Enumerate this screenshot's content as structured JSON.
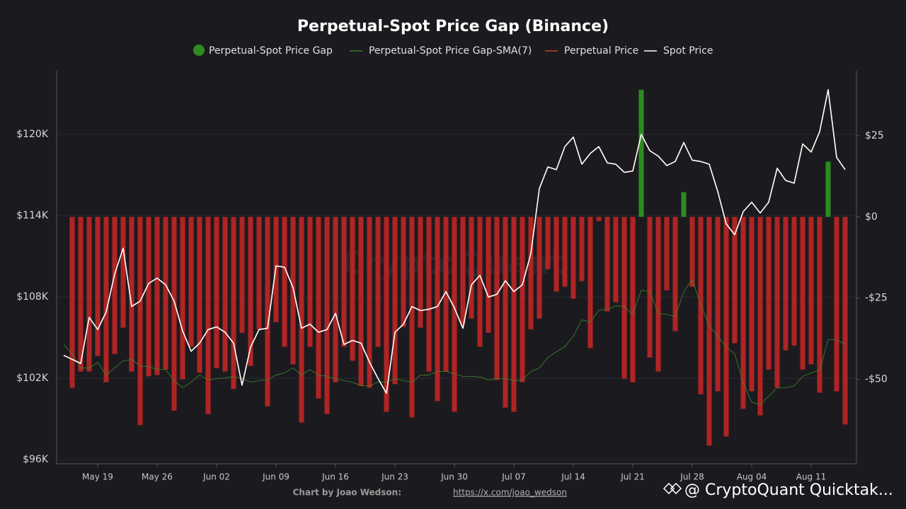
{
  "chart_data": {
    "type": "bar",
    "title": "Perpetual-Spot Price Gap (Binance)",
    "credit": "Chart by Joao Wedson:",
    "credit_link": "https://x.com/joao_wedson",
    "watermark": "@ CryptoQuant Quicktak...",
    "background_watermark": "CryptoQuant",
    "categories": [
      null,
      null,
      null,
      null,
      "May 19",
      null,
      null,
      null,
      null,
      null,
      null,
      "May 26",
      null,
      null,
      null,
      null,
      null,
      null,
      "Jun 02",
      null,
      null,
      null,
      null,
      null,
      null,
      "Jun 09",
      null,
      null,
      null,
      null,
      null,
      null,
      "Jun 16",
      null,
      null,
      null,
      null,
      null,
      null,
      "Jun 23",
      null,
      null,
      null,
      null,
      null,
      null,
      "Jun 30",
      null,
      null,
      null,
      null,
      null,
      null,
      "Jul 07",
      null,
      null,
      null,
      null,
      null,
      null,
      "Jul 14",
      null,
      null,
      null,
      null,
      null,
      null,
      "Jul 21",
      null,
      null,
      null,
      null,
      null,
      null,
      "Jul 28",
      null,
      null,
      null,
      null,
      null,
      null,
      "Aug 04",
      null,
      null,
      null,
      null,
      null,
      null,
      "Aug 11",
      null,
      null,
      null,
      null
    ],
    "ylim": [
      95700,
      124700
    ],
    "yticks": [
      {
        "value": 96000,
        "label": "$96K"
      },
      {
        "value": 102000,
        "label": "$102K"
      },
      {
        "value": 108000,
        "label": "$108K"
      },
      {
        "value": 114000,
        "label": "$114K"
      },
      {
        "value": 120000,
        "label": "$120K"
      }
    ],
    "y2lim": [
      -76,
      45
    ],
    "y2ticks": [
      {
        "value": -50,
        "label": "-$50"
      },
      {
        "value": -25,
        "label": "-$25"
      },
      {
        "value": 0,
        "label": "$0"
      },
      {
        "value": 25,
        "label": "$25"
      }
    ],
    "grid": true,
    "series": [
      {
        "name": "Perpetual-Spot Price Gap",
        "type": "bar",
        "axis": "y2",
        "color": "#2e8b22",
        "negative_color": "#b02424",
        "values": [
          null,
          -52.6,
          -47.6,
          -47.6,
          -42.8,
          -50.9,
          -42.2,
          -34.1,
          -47.6,
          -64.1,
          -49.1,
          -48.7,
          -47.0,
          -59.6,
          -50.0,
          -40,
          -48,
          -60.7,
          -46.5,
          -47.6,
          -53,
          -35.7,
          -45.9,
          -34.6,
          -58.3,
          -32.4,
          -40,
          -45.4,
          -63.3,
          -40,
          -55.9,
          -60.7,
          -50.9,
          -40,
          -44.3,
          -52,
          -52.6,
          -40,
          -60,
          -51.5,
          -33.9,
          -61.7,
          -34.1,
          -47.6,
          -56.7,
          -47.6,
          -60,
          -33,
          -31.3,
          -40,
          -35.7,
          -50.2,
          -58.7,
          -60,
          -50.9,
          -34.6,
          -31.3,
          -16.1,
          -23,
          -21.5,
          -25.2,
          -19.8,
          -40.4,
          -1.3,
          -29.1,
          -26.3,
          -49.8,
          -50.9,
          39.1,
          -43.3,
          -47.6,
          -22.6,
          -35.2,
          7.6,
          -21.5,
          -54.6,
          -70.4,
          -53.7,
          -67.6,
          -38.9,
          -59.1,
          -53.7,
          -61.1,
          -47,
          -52.6,
          -41.1,
          -39.6,
          -47,
          -45.4,
          -54.1,
          17,
          -53.7,
          -63.9
        ]
      },
      {
        "name": "Perpetual-Spot Price Gap-SMA(7)",
        "type": "line",
        "axis": "y2",
        "color": "#3c8a2c",
        "width": 0.8,
        "values": [
          -39.3,
          -42.2,
          -46.5,
          -46.5,
          -44.8,
          -48.7,
          -46.5,
          -44.3,
          -43.9,
          -45.9,
          -46.1,
          -47,
          -47,
          -50.4,
          -52.6,
          -50.9,
          -48.7,
          -50.2,
          -49.8,
          -49.6,
          -49.1,
          -49.8,
          -50.9,
          -50.4,
          -50.2,
          -48.7,
          -48,
          -46.5,
          -48.7,
          -47,
          -48.7,
          -49.1,
          -49.8,
          -50.4,
          -50.9,
          -52,
          -52,
          -50.9,
          -50.9,
          -49.8,
          -50.4,
          -50.9,
          -48.7,
          -48.7,
          -47.6,
          -47.6,
          -48.3,
          -49.1,
          -49.1,
          -49.3,
          -50.2,
          -49.8,
          -49.8,
          -50.4,
          -50.2,
          -47.6,
          -46.5,
          -43.3,
          -41.5,
          -40,
          -36.7,
          -31.7,
          -32.4,
          -28.7,
          -28.5,
          -27.4,
          -27.6,
          -30.2,
          -22.6,
          -23,
          -29.8,
          -30,
          -30.7,
          -23,
          -19.3,
          -27,
          -33.5,
          -36.7,
          -40,
          -42.2,
          -50.9,
          -57,
          -57.8,
          -55.2,
          -52.6,
          -52.6,
          -52,
          -49.1,
          -48,
          -47.2,
          -37.8,
          -37.8,
          -39.3
        ]
      },
      {
        "name": "Perpetual Price",
        "type": "line",
        "color": "#c0392b",
        "width": 1.5,
        "values": [
          103700,
          103400,
          103100,
          106500,
          105600,
          106900,
          109700,
          111600,
          107300,
          107700,
          109000,
          109400,
          108900,
          107700,
          105500,
          104000,
          104600,
          105600,
          105800,
          105400,
          104600,
          101500,
          104300,
          105600,
          105700,
          110300,
          110200,
          108700,
          105700,
          106000,
          105400,
          105600,
          106800,
          104500,
          104800,
          104600,
          103200,
          102000,
          100900,
          105400,
          106000,
          107300,
          107000,
          107100,
          107300,
          108400,
          107200,
          105700,
          108900,
          109600,
          108000,
          108200,
          109200,
          108400,
          108900,
          111200,
          116000,
          117600,
          117400,
          119100,
          119800,
          117800,
          118600,
          119100,
          117900,
          117800,
          117200,
          117300,
          120000,
          118800,
          118400,
          117700,
          118000,
          119400,
          118100,
          118000,
          117800,
          115800,
          113400,
          112600,
          114300,
          115000,
          114200,
          115000,
          117500,
          116600,
          116400,
          119300,
          118700,
          120200,
          123300,
          118300,
          117400
        ]
      },
      {
        "name": "Spot Price",
        "type": "line",
        "color": "#ffffff",
        "width": 1.6,
        "values": [
          103700,
          103400,
          103100,
          106500,
          105600,
          106900,
          109700,
          111600,
          107300,
          107700,
          109000,
          109400,
          108900,
          107700,
          105500,
          104000,
          104600,
          105600,
          105800,
          105400,
          104600,
          101500,
          104300,
          105600,
          105700,
          110300,
          110200,
          108700,
          105700,
          106000,
          105400,
          105600,
          106800,
          104500,
          104800,
          104600,
          103200,
          102000,
          100900,
          105400,
          106000,
          107300,
          107000,
          107100,
          107300,
          108400,
          107200,
          105700,
          108900,
          109600,
          108000,
          108200,
          109200,
          108400,
          108900,
          111200,
          116000,
          117600,
          117400,
          119100,
          119800,
          117800,
          118600,
          119100,
          117900,
          117800,
          117200,
          117300,
          120000,
          118800,
          118400,
          117700,
          118000,
          119400,
          118100,
          118000,
          117800,
          115800,
          113400,
          112600,
          114300,
          115000,
          114200,
          115000,
          117500,
          116600,
          116400,
          119300,
          118700,
          120200,
          123300,
          118300,
          117400
        ]
      }
    ]
  }
}
